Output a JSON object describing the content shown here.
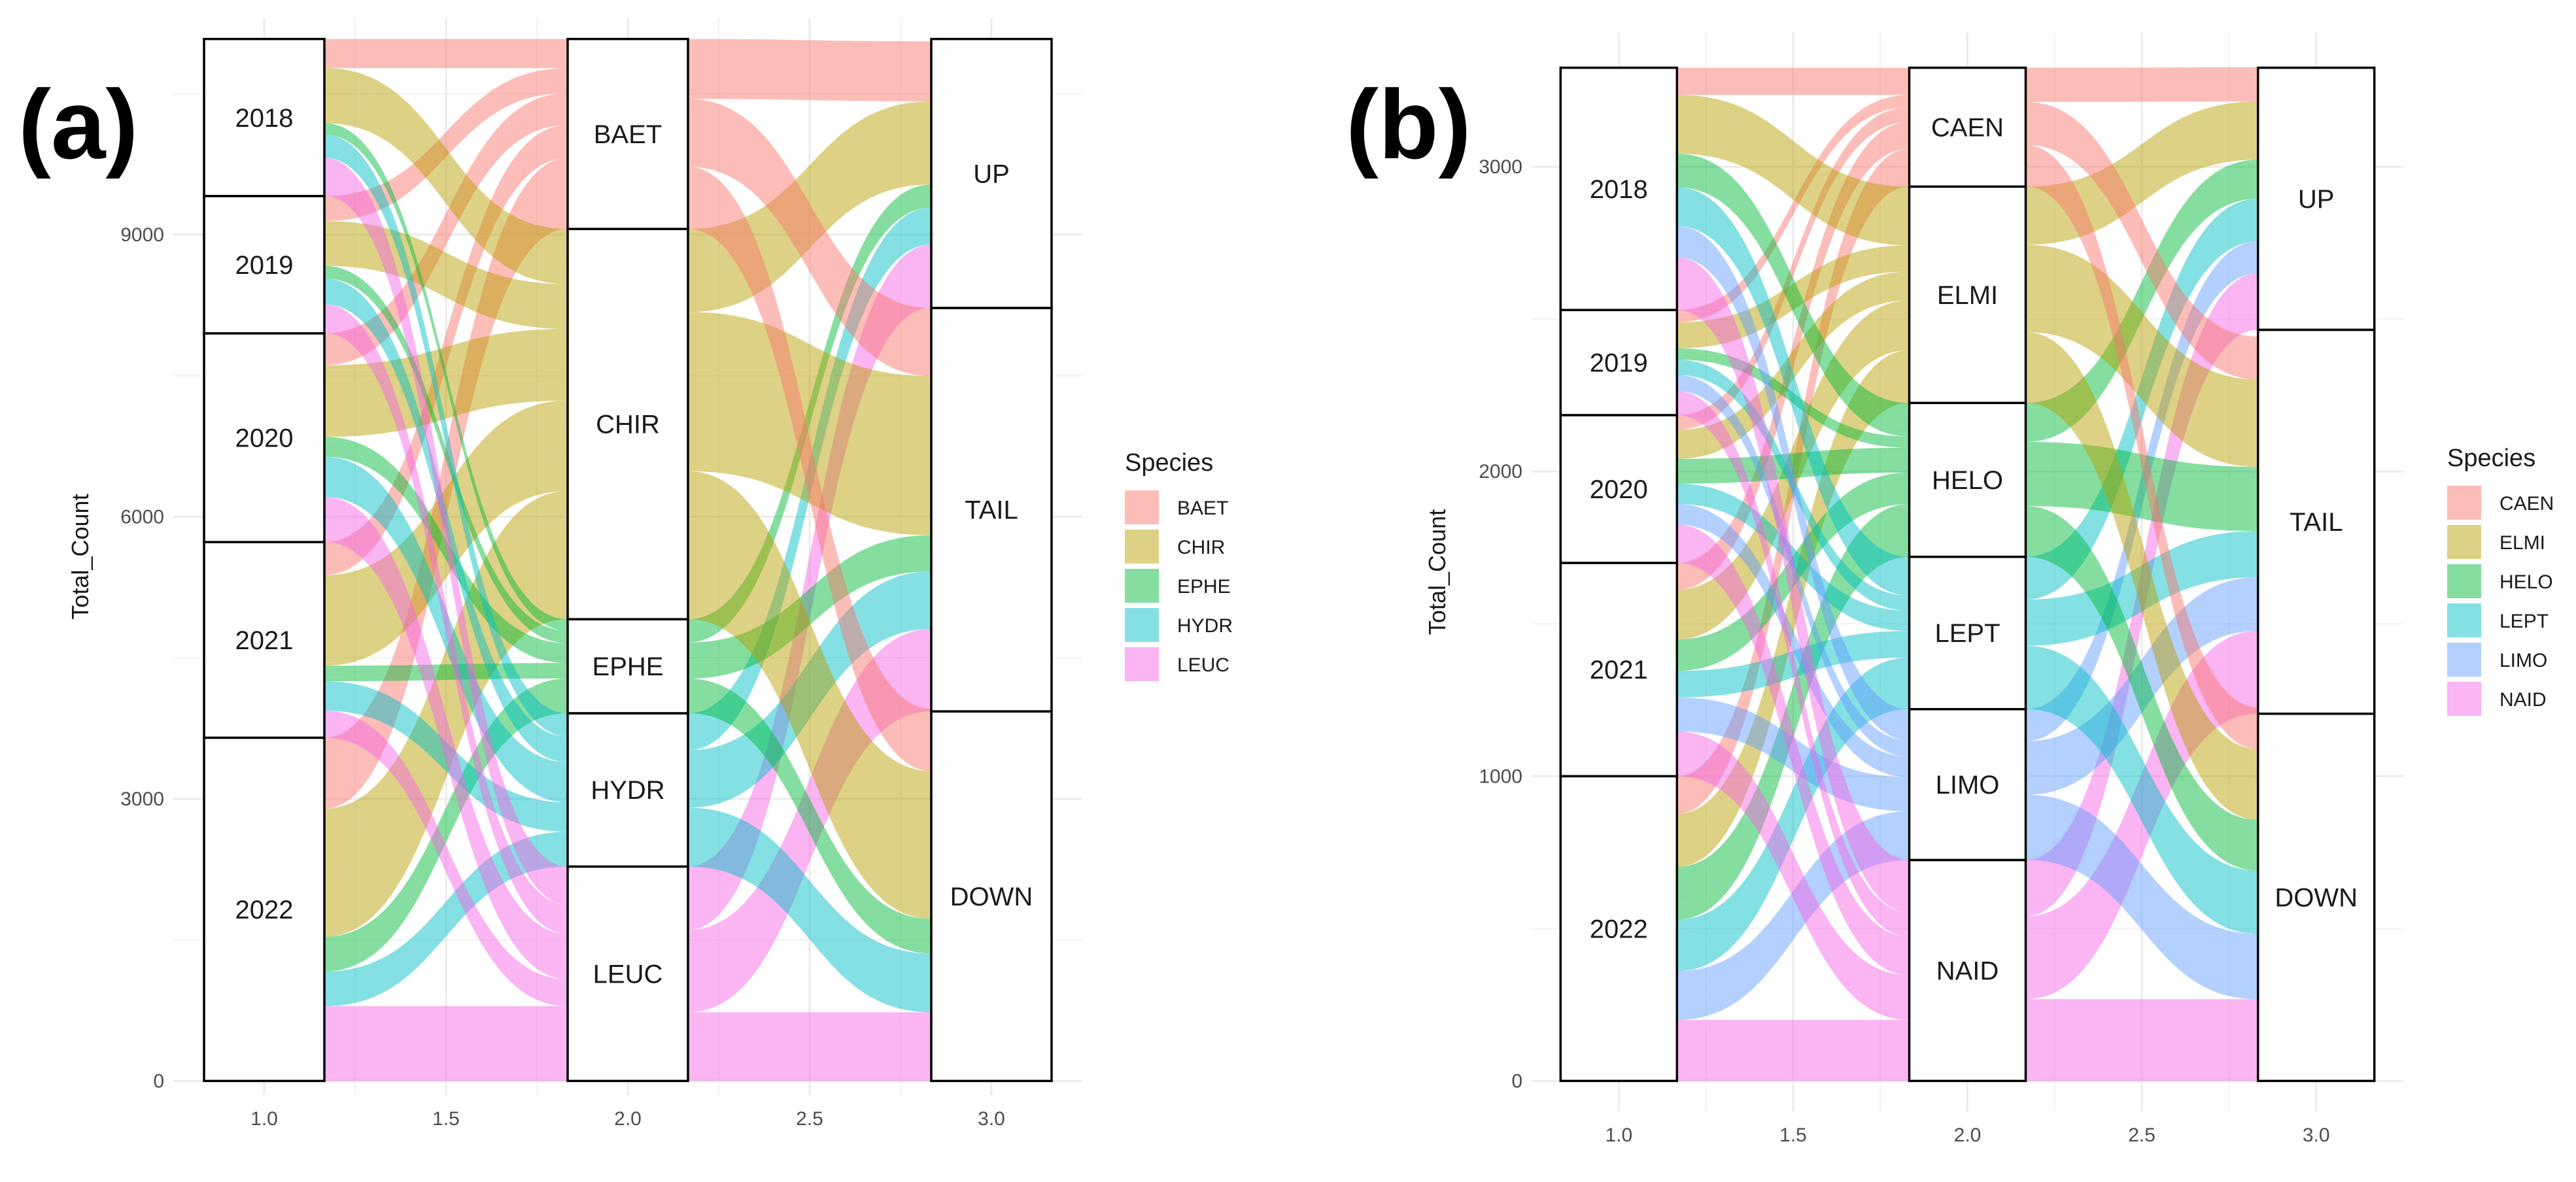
{
  "chart_data": [
    {
      "type": "alluvial",
      "panel_label": "(a)",
      "title": "",
      "xlabel": "",
      "ylabel": "Total_Count",
      "x_ticks": [
        "1.0",
        "1.5",
        "2.0",
        "2.5",
        "3.0"
      ],
      "x_tick_values": [
        1.0,
        1.5,
        2.0,
        2.5,
        3.0
      ],
      "xlim": [
        0.75,
        3.25
      ],
      "y_ticks": [
        "0",
        "3000",
        "6000",
        "9000"
      ],
      "y_tick_values": [
        0,
        3000,
        6000,
        9000
      ],
      "ylim": [
        -150,
        11300
      ],
      "total": 11080,
      "legend_title": "Species",
      "legend_position": "right",
      "species": [
        {
          "name": "BAET",
          "color": "#F8766D"
        },
        {
          "name": "CHIR",
          "color": "#B79F00"
        },
        {
          "name": "EPHE",
          "color": "#00BA38"
        },
        {
          "name": "HYDR",
          "color": "#00BFC4"
        },
        {
          "name": "LEUC",
          "color": "#F564E3"
        }
      ],
      "axes": [
        {
          "x": 1.0,
          "strata": [
            {
              "label": "2022",
              "value": 3650
            },
            {
              "label": "2021",
              "value": 2080
            },
            {
              "label": "2020",
              "value": 2220
            },
            {
              "label": "2019",
              "value": 1460
            },
            {
              "label": "2018",
              "value": 1670
            }
          ]
        },
        {
          "x": 2.0,
          "strata": [
            {
              "label": "LEUC",
              "value": 2280,
              "species": "LEUC"
            },
            {
              "label": "HYDR",
              "value": 1630,
              "species": "HYDR"
            },
            {
              "label": "EPHE",
              "value": 1000,
              "species": "EPHE"
            },
            {
              "label": "CHIR",
              "value": 4150,
              "species": "CHIR"
            },
            {
              "label": "BAET",
              "value": 2020,
              "species": "BAET"
            }
          ]
        },
        {
          "x": 3.0,
          "strata": [
            {
              "label": "DOWN",
              "value": 3930
            },
            {
              "label": "TAIL",
              "value": 4290
            },
            {
              "label": "UP",
              "value": 2860
            }
          ]
        }
      ]
    },
    {
      "type": "alluvial",
      "panel_label": "(b)",
      "title": "",
      "xlabel": "",
      "ylabel": "Total_Count",
      "x_ticks": [
        "1.0",
        "1.5",
        "2.0",
        "2.5",
        "3.0"
      ],
      "x_tick_values": [
        1.0,
        1.5,
        2.0,
        2.5,
        3.0
      ],
      "xlim": [
        0.75,
        3.25
      ],
      "y_ticks": [
        "0",
        "1000",
        "2000",
        "3000"
      ],
      "y_tick_values": [
        0,
        1000,
        2000,
        3000
      ],
      "ylim": [
        -100,
        3440
      ],
      "total": 3325,
      "legend_title": "Species",
      "legend_position": "right",
      "species": [
        {
          "name": "CAEN",
          "color": "#F8766D"
        },
        {
          "name": "ELMI",
          "color": "#B79F00"
        },
        {
          "name": "HELO",
          "color": "#00BA38"
        },
        {
          "name": "LEPT",
          "color": "#00BFC4"
        },
        {
          "name": "LIMO",
          "color": "#619CFF"
        },
        {
          "name": "NAID",
          "color": "#F564E3"
        }
      ],
      "axes": [
        {
          "x": 1.0,
          "strata": [
            {
              "label": "2022",
              "value": 1000
            },
            {
              "label": "2021",
              "value": 700
            },
            {
              "label": "2020",
              "value": 485
            },
            {
              "label": "2019",
              "value": 345
            },
            {
              "label": "2018",
              "value": 795
            }
          ]
        },
        {
          "x": 2.0,
          "strata": [
            {
              "label": "NAID",
              "value": 725,
              "species": "NAID"
            },
            {
              "label": "LIMO",
              "value": 495,
              "species": "LIMO"
            },
            {
              "label": "LEPT",
              "value": 500,
              "species": "LEPT"
            },
            {
              "label": "HELO",
              "value": 505,
              "species": "HELO"
            },
            {
              "label": "ELMI",
              "value": 710,
              "species": "ELMI"
            },
            {
              "label": "CAEN",
              "value": 390,
              "species": "CAEN"
            }
          ]
        },
        {
          "x": 3.0,
          "strata": [
            {
              "label": "DOWN",
              "value": 1205
            },
            {
              "label": "TAIL",
              "value": 1260
            },
            {
              "label": "UP",
              "value": 860
            }
          ]
        }
      ]
    }
  ]
}
